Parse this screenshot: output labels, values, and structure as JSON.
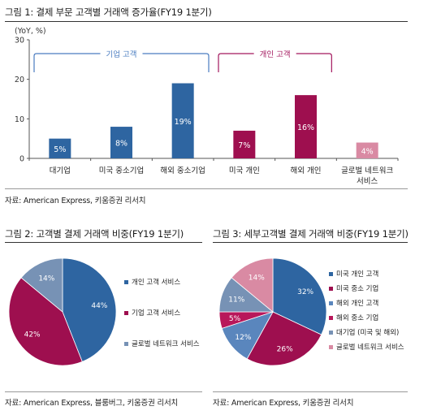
{
  "colors": {
    "blue": "#2e65a1",
    "crimson": "#9e0f4f",
    "slate": "#7792b5",
    "pink": "#d98aa3",
    "lightblue": "#5a86bd",
    "brace_blue": "#4a7cc0",
    "brace_crimson": "#a3185e"
  },
  "figure1": {
    "title": "그림 1: 결제 부문 고객별 거래액 증가율(FY19 1분기)",
    "source": "자료: American Express, 키움증권 리서치",
    "chart_data": {
      "type": "bar",
      "ylabel": "(YoY, %)",
      "ylim": [
        0,
        30
      ],
      "yticks": [
        0,
        10,
        20,
        30
      ],
      "categories": [
        "대기업",
        "미국 중소기업",
        "해외 중소기업",
        "미국 개인",
        "해외 개인",
        "글로벌 네트워크 서비스"
      ],
      "category_lines": [
        [
          "대기업"
        ],
        [
          "미국 중소기업"
        ],
        [
          "해외 중소기업"
        ],
        [
          "미국 개인"
        ],
        [
          "해외 개인"
        ],
        [
          "글로벌 네트워크",
          "서비스"
        ]
      ],
      "values": [
        5,
        8,
        19,
        7,
        16,
        4
      ],
      "data_labels": [
        "5%",
        "8%",
        "19%",
        "7%",
        "16%",
        "4%"
      ],
      "bar_colors": [
        "#2e65a1",
        "#2e65a1",
        "#2e65a1",
        "#9e0f4f",
        "#9e0f4f",
        "#d98aa3"
      ],
      "groups": [
        {
          "label": "기업 고객",
          "from": 0,
          "to": 2,
          "color": "#4a7cc0"
        },
        {
          "label": "개인 고객",
          "from": 3,
          "to": 4,
          "color": "#a3185e"
        }
      ]
    }
  },
  "figure2": {
    "title": "그림 2: 고객별 결제 거래액 비중(FY19 1분기)",
    "source": "자료: American Express, 블룸버그, 키움증권 리서치",
    "chart_data": {
      "type": "pie",
      "labels": [
        "개인 고객 서비스",
        "기업 고객 서비스",
        "글로벌 네트워크 서비스"
      ],
      "values": [
        44,
        42,
        14
      ],
      "data_labels": [
        "44%",
        "42%",
        "14%"
      ],
      "colors": [
        "#2e65a1",
        "#9e0f4f",
        "#7792b5"
      ]
    }
  },
  "figure3": {
    "title": "그림 3: 세부고객별 결제 거래액 비중(FY19 1분기)",
    "source": "자료: American Express, 키움증권 리서치",
    "chart_data": {
      "type": "pie",
      "labels": [
        "미국 개인 고객",
        "미국 중소 기업",
        "해외 개인 고객",
        "해외 중소 기업",
        "대기업 (미국 및 해외)",
        "글로벌 네트워크 서비스"
      ],
      "values": [
        32,
        26,
        12,
        5,
        11,
        14
      ],
      "data_labels": [
        "32%",
        "26%",
        "12%",
        "5%",
        "11%",
        "14%"
      ],
      "colors": [
        "#2e65a1",
        "#9e0f4f",
        "#5a86bd",
        "#b8175a",
        "#7792b5",
        "#d98aa3"
      ]
    }
  }
}
